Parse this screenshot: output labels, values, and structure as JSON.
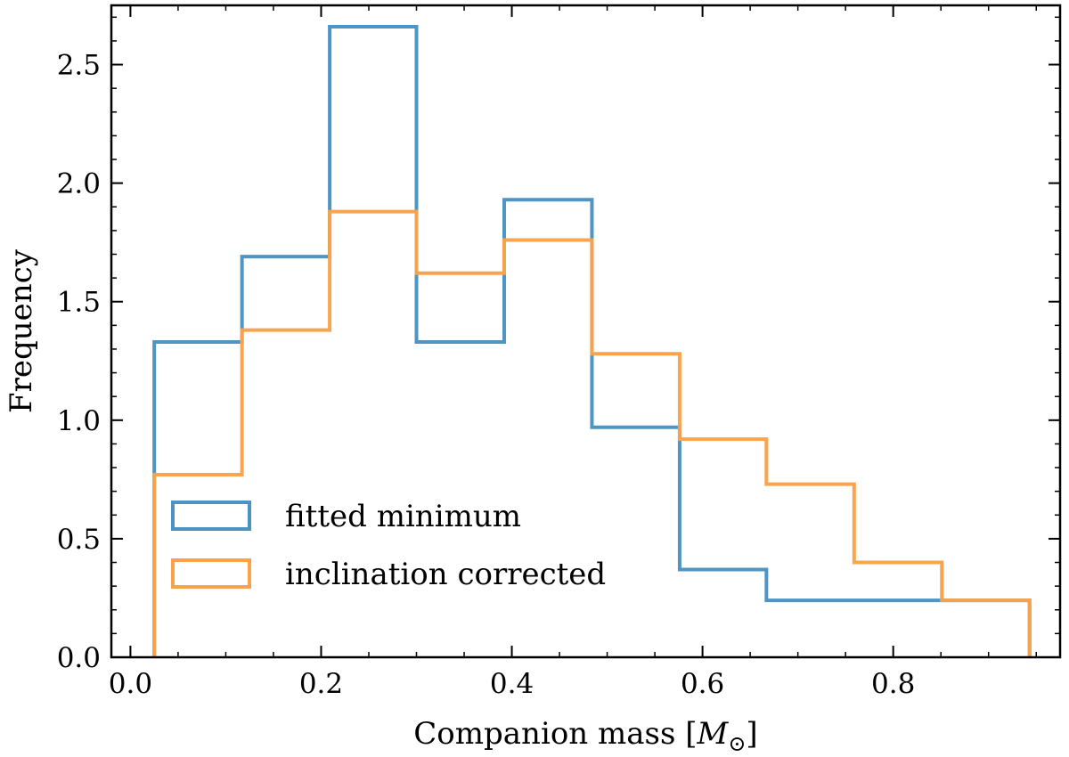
{
  "chart_data": {
    "type": "histogram",
    "title": "",
    "xlabel": "Companion mass [",
    "xlabel_symbol": "M",
    "xlabel_subscript": "⊙",
    "xlabel_close": "]",
    "ylabel": "Frequency",
    "xlim": [
      -0.02,
      0.975
    ],
    "ylim": [
      0,
      2.75
    ],
    "xticks": [
      0.0,
      0.2,
      0.4,
      0.6,
      0.8
    ],
    "xtick_labels": [
      "0.0",
      "0.2",
      "0.4",
      "0.6",
      "0.8"
    ],
    "yticks": [
      0.0,
      0.5,
      1.0,
      1.5,
      2.0,
      2.5
    ],
    "ytick_labels": [
      "0.0",
      "0.5",
      "1.0",
      "1.5",
      "2.0",
      "2.5"
    ],
    "x_minor_step": 0.05,
    "y_minor_step": 0.1,
    "grid": false,
    "legend_position": "lower-left",
    "bin_edges": [
      0.025,
      0.117,
      0.209,
      0.3,
      0.392,
      0.484,
      0.576,
      0.667,
      0.759,
      0.851,
      0.943
    ],
    "series": [
      {
        "name": "fitted minimum",
        "color": "#4b93c3",
        "values": [
          1.33,
          1.69,
          2.66,
          1.33,
          1.93,
          0.97,
          0.37,
          0.24,
          0.24,
          0.24
        ]
      },
      {
        "name": "inclination corrected",
        "color": "#f9a24a",
        "values": [
          0.77,
          1.38,
          1.88,
          1.62,
          1.76,
          1.28,
          0.92,
          0.73,
          0.4,
          0.24
        ]
      }
    ]
  }
}
